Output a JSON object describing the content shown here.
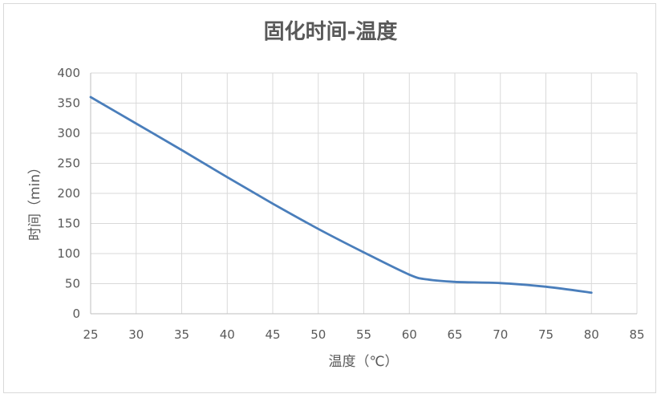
{
  "chart_data": {
    "type": "line",
    "title": "固化时间-温度",
    "xlabel": "温度（℃）",
    "ylabel": "时间（min）",
    "xlim": [
      25,
      85
    ],
    "ylim": [
      0,
      400
    ],
    "x_ticks": [
      25,
      30,
      35,
      40,
      45,
      50,
      55,
      60,
      65,
      70,
      75,
      80,
      85
    ],
    "y_ticks": [
      0,
      50,
      100,
      150,
      200,
      250,
      300,
      350,
      400
    ],
    "grid": true,
    "legend": "none",
    "series": [
      {
        "color": "#4a7ebb",
        "x": [
          25,
          30,
          35,
          40,
          45,
          50,
          55,
          60,
          62,
          65,
          70,
          75,
          80
        ],
        "y": [
          360,
          316,
          272,
          227,
          183,
          141,
          102,
          65,
          57,
          53,
          51,
          45,
          35
        ]
      }
    ]
  }
}
